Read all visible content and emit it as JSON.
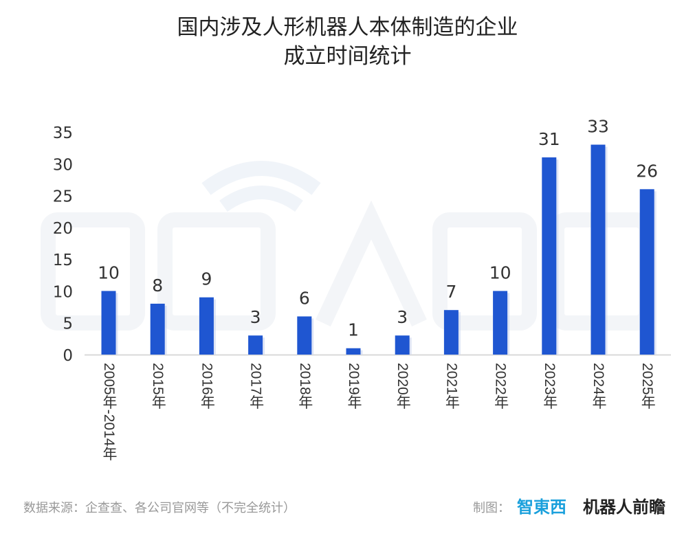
{
  "chart_data": {
    "type": "bar",
    "title": "国内涉及人形机器人本体制造的企业成立时间统计",
    "title_lines": [
      "国内涉及人形机器人本体制造的企业",
      "成立时间统计"
    ],
    "categories": [
      "2005年-2014年",
      "2015年",
      "2016年",
      "2017年",
      "2018年",
      "2019年",
      "2020年",
      "2021年",
      "2022年",
      "2023年",
      "2024年",
      "2025年"
    ],
    "values": [
      10,
      8,
      9,
      3,
      6,
      1,
      3,
      7,
      10,
      31,
      33,
      26
    ],
    "xlabel": "",
    "ylabel": "",
    "ylim": [
      0,
      35
    ],
    "yticks": [
      0,
      5,
      10,
      15,
      20,
      25,
      30,
      35
    ],
    "grid": false,
    "data_labels": true,
    "bar_color": "#1f56d1"
  },
  "footer": {
    "source": "数据来源：企查查、各公司官网等（不完全统计）",
    "made_by": "制图：",
    "logo_zhidongxi": "智東西",
    "logo_robot": "机器人前瞻"
  },
  "watermark": "机器人前瞻"
}
